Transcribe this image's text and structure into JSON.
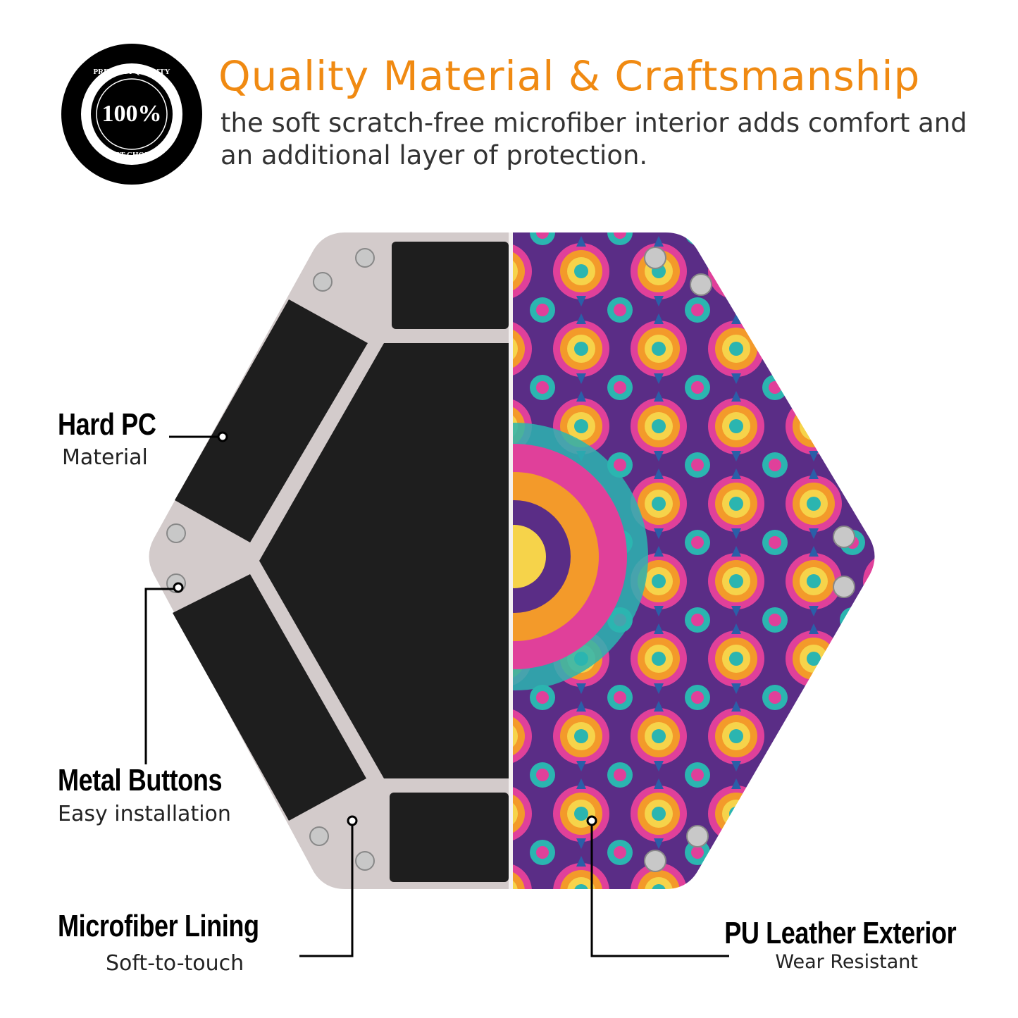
{
  "badge": {
    "top_text": "PREMIUM QUALITY",
    "center_text": "100%",
    "bottom_text": "BEST CHOICE"
  },
  "header": {
    "title": "Quality Material & Craftsmanship",
    "subtitle": "the soft scratch-free microfiber interior adds comfort and an additional layer of protection."
  },
  "callouts": [
    {
      "title": "Hard PC",
      "subtitle": "Material"
    },
    {
      "title": "Metal Buttons",
      "subtitle": "Easy installation"
    },
    {
      "title": "Microfiber Lining",
      "subtitle": "Soft-to-touch"
    },
    {
      "title": "PU Leather Exterior",
      "subtitle": "Wear Resistant"
    }
  ],
  "colors": {
    "accent": "#f08a12",
    "frame": "#d3cbcb",
    "lining": "#1e1e1e",
    "pattern": [
      "#5a2d86",
      "#e0409a",
      "#f39a2a",
      "#2bb5b0",
      "#f6d34a",
      "#2a5fa8"
    ]
  }
}
